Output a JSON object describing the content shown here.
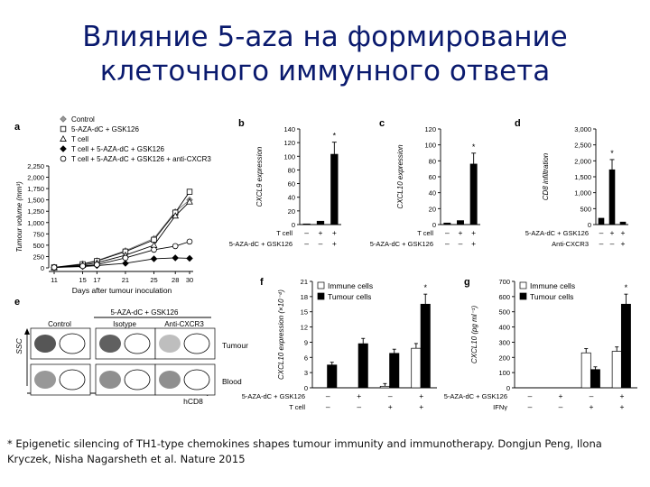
{
  "slide": {
    "title_line1": "Влияние 5-aza на формирование",
    "title_line2": "клеточного иммунного ответа",
    "footnote": "* Epigenetic silencing of TH1-type chemokines shapes tumour immunity and immunotherapy. Dongjun Peng, Ilona Kryczek, Nisha Nagarsheth et al. Nature 2015"
  },
  "figure": {
    "panel_labels": [
      "a",
      "b",
      "c",
      "d",
      "e",
      "f",
      "g"
    ],
    "panel_a_legend": [
      "Control",
      "5-AZA-dC + GSK126",
      "T cell",
      "T cell + 5-AZA-dC + GSK126",
      "T cell + 5-AZA-dC + GSK126 + anti-CXCR3"
    ],
    "b_row1": "T cell",
    "b_row2": "5-AZA-dC + GSK126",
    "c_row1": "T cell",
    "c_row2": "5-AZA-dC + GSK126",
    "d_row1": "5-AZA-dC + GSK126",
    "d_row2": "Anti-CXCR3",
    "f_row1": "5-AZA-dC + GSK126",
    "f_row2": "T cell",
    "g_row1": "5-AZA-dC + GSK126",
    "g_row2": "IFNγ",
    "f_legend": [
      "Immune cells",
      "Tumour cells"
    ],
    "g_legend": [
      "Immune cells",
      "Tumour cells"
    ],
    "e_header": "5-AZA-dC + GSK126",
    "e_cols": [
      "Control",
      "Isotype",
      "Anti-CXCR3"
    ],
    "e_rows": [
      "Tumour",
      "Blood"
    ],
    "e_yaxis": "SSC",
    "e_xaxis": "hCD8",
    "star": "*",
    "signs": {
      "minus": "–",
      "plus": "+"
    }
  },
  "chart_data": [
    {
      "id": "a",
      "type": "line",
      "xlabel": "Days after tumour inoculation",
      "ylabel": "Tumour volume (mm³)",
      "x": [
        11,
        15,
        17,
        21,
        25,
        28,
        30
      ],
      "xticks": [
        "11",
        "15",
        "17",
        "21",
        "25",
        "28",
        "30"
      ],
      "ylim": [
        0,
        2250
      ],
      "yticks": [
        "0",
        "250",
        "500",
        "750",
        "1,000",
        "1,250",
        "1,500",
        "1,750",
        "2,000",
        "2,250"
      ],
      "series": [
        {
          "name": "Control",
          "values": [
            10,
            90,
            160,
            380,
            650,
            1240,
            1500
          ]
        },
        {
          "name": "5-AZA-dC + GSK126",
          "values": [
            10,
            80,
            150,
            360,
            620,
            1220,
            1680
          ]
        },
        {
          "name": "T cell",
          "values": [
            10,
            60,
            110,
            280,
            500,
            1150,
            1460
          ]
        },
        {
          "name": "T cell + 5-AZA-dC + GSK126",
          "values": [
            10,
            30,
            50,
            100,
            200,
            220,
            210
          ]
        },
        {
          "name": "T cell + 5-AZA-dC + GSK126 + anti-CXCR3",
          "values": [
            10,
            40,
            70,
            220,
            400,
            480,
            580
          ]
        }
      ]
    },
    {
      "id": "b",
      "type": "bar",
      "ylabel": "CXCL9 expression",
      "ylim": [
        0,
        140
      ],
      "yticks": [
        "0",
        "20",
        "40",
        "60",
        "80",
        "100",
        "120",
        "140"
      ],
      "conditions": [
        [
          "–",
          "–"
        ],
        [
          "+",
          "–"
        ],
        [
          "+",
          "+"
        ]
      ],
      "values": [
        1,
        5,
        103
      ]
    },
    {
      "id": "c",
      "type": "bar",
      "ylabel": "CXCL10 expression",
      "ylim": [
        0,
        120
      ],
      "yticks": [
        "0",
        "20",
        "40",
        "60",
        "80",
        "100",
        "120"
      ],
      "conditions": [
        [
          "–",
          "–"
        ],
        [
          "+",
          "–"
        ],
        [
          "+",
          "+"
        ]
      ],
      "values": [
        2,
        5,
        76
      ]
    },
    {
      "id": "d",
      "type": "bar",
      "ylabel": "CD8 infiltration",
      "ylim": [
        0,
        3000
      ],
      "yticks": [
        "0",
        "500",
        "1,000",
        "1,500",
        "2,000",
        "2,500",
        "3,000"
      ],
      "conditions": [
        [
          "–",
          "–"
        ],
        [
          "+",
          "–"
        ],
        [
          "+",
          "+"
        ]
      ],
      "values": [
        200,
        1720,
        80
      ]
    },
    {
      "id": "f",
      "type": "bar",
      "ylabel": "CXCL10 expression (×10⁻⁴)",
      "ylim": [
        0,
        21
      ],
      "yticks": [
        "0",
        "3",
        "6",
        "9",
        "12",
        "15",
        "18",
        "21"
      ],
      "conditions": [
        [
          "–",
          "–"
        ],
        [
          "+",
          "–"
        ],
        [
          "–",
          "+"
        ],
        [
          "+",
          "+"
        ]
      ],
      "series": [
        {
          "name": "Immune cells",
          "values": [
            0,
            0,
            0.3,
            7.8
          ]
        },
        {
          "name": "Tumour cells",
          "values": [
            4.5,
            8.7,
            6.8,
            16.5
          ]
        }
      ]
    },
    {
      "id": "g",
      "type": "bar",
      "ylabel": "CXCL10 (pg ml⁻¹)",
      "ylim": [
        0,
        700
      ],
      "yticks": [
        "0",
        "100",
        "200",
        "300",
        "400",
        "500",
        "600",
        "700"
      ],
      "conditions": [
        [
          "–",
          "–"
        ],
        [
          "+",
          "–"
        ],
        [
          "–",
          "+"
        ],
        [
          "+",
          "+"
        ]
      ],
      "series": [
        {
          "name": "Immune cells",
          "values": [
            0,
            0,
            230,
            240
          ]
        },
        {
          "name": "Tumour cells",
          "values": [
            0,
            0,
            120,
            550
          ]
        }
      ]
    }
  ]
}
